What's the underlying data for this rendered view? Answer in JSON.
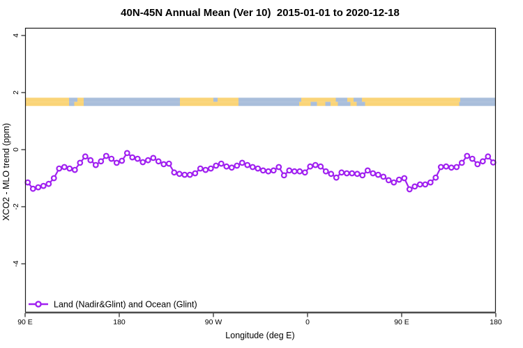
{
  "title": "40N-45N Annual Mean (Ver 10)  2015-01-01 to 2020-12-18",
  "axes": {
    "x_label": "Longitude (deg E)",
    "y_label": "XCO2 - MLO trend (ppm)"
  },
  "legend": {
    "label": "Land (Nadir&Glint) and Ocean (Glint)",
    "marker": "open-circle-on-line",
    "color": "#A020F0"
  },
  "colors": {
    "series": "#A020F0",
    "marker_fill": "#FFFFFF",
    "land": "#FAD478",
    "ocean": "#A9BEDB",
    "axis_line": "#4D4D4D",
    "box": "#1A1A1A",
    "background": "#FFFFFF"
  },
  "chart_data": {
    "type": "line",
    "title": "40N-45N Annual Mean (Ver 10)  2015-01-01 to 2020-12-18",
    "xlabel": "Longitude (deg E)",
    "ylabel": "XCO2 - MLO trend (ppm)",
    "xlim": [
      90,
      540
    ],
    "ylim": [
      -5.7,
      4.3
    ],
    "grid": false,
    "legend_position": "bottom-left-inside",
    "x_ticks": [
      {
        "lon": 90,
        "label": "90 E"
      },
      {
        "lon": 180,
        "label": "180"
      },
      {
        "lon": 270,
        "label": "90 W"
      },
      {
        "lon": 360,
        "label": "0"
      },
      {
        "lon": 450,
        "label": "90 E"
      },
      {
        "lon": 540,
        "label": "180"
      }
    ],
    "y_ticks": [
      {
        "value": 4,
        "label": "4"
      },
      {
        "value": 2,
        "label": "2"
      },
      {
        "value": 0,
        "label": "0"
      },
      {
        "value": -2,
        "label": "-2"
      },
      {
        "value": -4,
        "label": "-4"
      }
    ],
    "series": [
      {
        "name": "Land (Nadir&Glint) and Ocean (Glint)",
        "lon_start": 92.5,
        "lon_step": 5,
        "values": [
          -1.15,
          -1.37,
          -1.32,
          -1.27,
          -1.2,
          -1.0,
          -0.66,
          -0.61,
          -0.66,
          -0.71,
          -0.46,
          -0.24,
          -0.37,
          -0.54,
          -0.41,
          -0.22,
          -0.32,
          -0.46,
          -0.39,
          -0.12,
          -0.27,
          -0.32,
          -0.44,
          -0.37,
          -0.29,
          -0.41,
          -0.51,
          -0.49,
          -0.8,
          -0.85,
          -0.88,
          -0.88,
          -0.83,
          -0.66,
          -0.71,
          -0.66,
          -0.56,
          -0.49,
          -0.59,
          -0.63,
          -0.56,
          -0.46,
          -0.54,
          -0.61,
          -0.66,
          -0.73,
          -0.76,
          -0.73,
          -0.61,
          -0.9,
          -0.73,
          -0.76,
          -0.76,
          -0.8,
          -0.59,
          -0.54,
          -0.59,
          -0.76,
          -0.85,
          -0.98,
          -0.8,
          -0.83,
          -0.83,
          -0.85,
          -0.9,
          -0.73,
          -0.83,
          -0.88,
          -0.95,
          -1.07,
          -1.15,
          -1.05,
          -1.0,
          -1.39,
          -1.29,
          -1.22,
          -1.22,
          -1.15,
          -0.98,
          -0.61,
          -0.59,
          -0.63,
          -0.61,
          -0.46,
          -0.22,
          -0.32,
          -0.51,
          -0.41,
          -0.24,
          -0.45
        ]
      }
    ],
    "land_ocean_mask": {
      "description": "two latitude rows of land(yellow)/ocean(blue) strip",
      "y_value_range": [
        1.53,
        1.82
      ],
      "rows": [
        {
          "name": "north-row",
          "segments": [
            {
              "from": 90,
              "to": 132,
              "type": "land"
            },
            {
              "from": 132,
              "to": 140,
              "type": "ocean"
            },
            {
              "from": 140,
              "to": 146,
              "type": "land"
            },
            {
              "from": 146,
              "to": 238,
              "type": "ocean"
            },
            {
              "from": 238,
              "to": 270,
              "type": "land"
            },
            {
              "from": 270,
              "to": 274,
              "type": "ocean"
            },
            {
              "from": 274,
              "to": 294,
              "type": "land"
            },
            {
              "from": 294,
              "to": 354,
              "type": "ocean"
            },
            {
              "from": 354,
              "to": 387,
              "type": "land"
            },
            {
              "from": 387,
              "to": 398,
              "type": "ocean"
            },
            {
              "from": 398,
              "to": 404,
              "type": "land"
            },
            {
              "from": 404,
              "to": 412,
              "type": "ocean"
            },
            {
              "from": 412,
              "to": 506,
              "type": "land"
            },
            {
              "from": 506,
              "to": 540,
              "type": "ocean"
            }
          ]
        },
        {
          "name": "south-row",
          "segments": [
            {
              "from": 90,
              "to": 132,
              "type": "land"
            },
            {
              "from": 132,
              "to": 137,
              "type": "ocean"
            },
            {
              "from": 137,
              "to": 146,
              "type": "land"
            },
            {
              "from": 146,
              "to": 238,
              "type": "ocean"
            },
            {
              "from": 238,
              "to": 294,
              "type": "land"
            },
            {
              "from": 294,
              "to": 352,
              "type": "ocean"
            },
            {
              "from": 352,
              "to": 363,
              "type": "land"
            },
            {
              "from": 363,
              "to": 369,
              "type": "ocean"
            },
            {
              "from": 369,
              "to": 377,
              "type": "land"
            },
            {
              "from": 377,
              "to": 382,
              "type": "ocean"
            },
            {
              "from": 382,
              "to": 389,
              "type": "land"
            },
            {
              "from": 389,
              "to": 401,
              "type": "ocean"
            },
            {
              "from": 401,
              "to": 407,
              "type": "land"
            },
            {
              "from": 407,
              "to": 415,
              "type": "ocean"
            },
            {
              "from": 415,
              "to": 505,
              "type": "land"
            },
            {
              "from": 505,
              "to": 540,
              "type": "ocean"
            }
          ]
        }
      ]
    }
  }
}
